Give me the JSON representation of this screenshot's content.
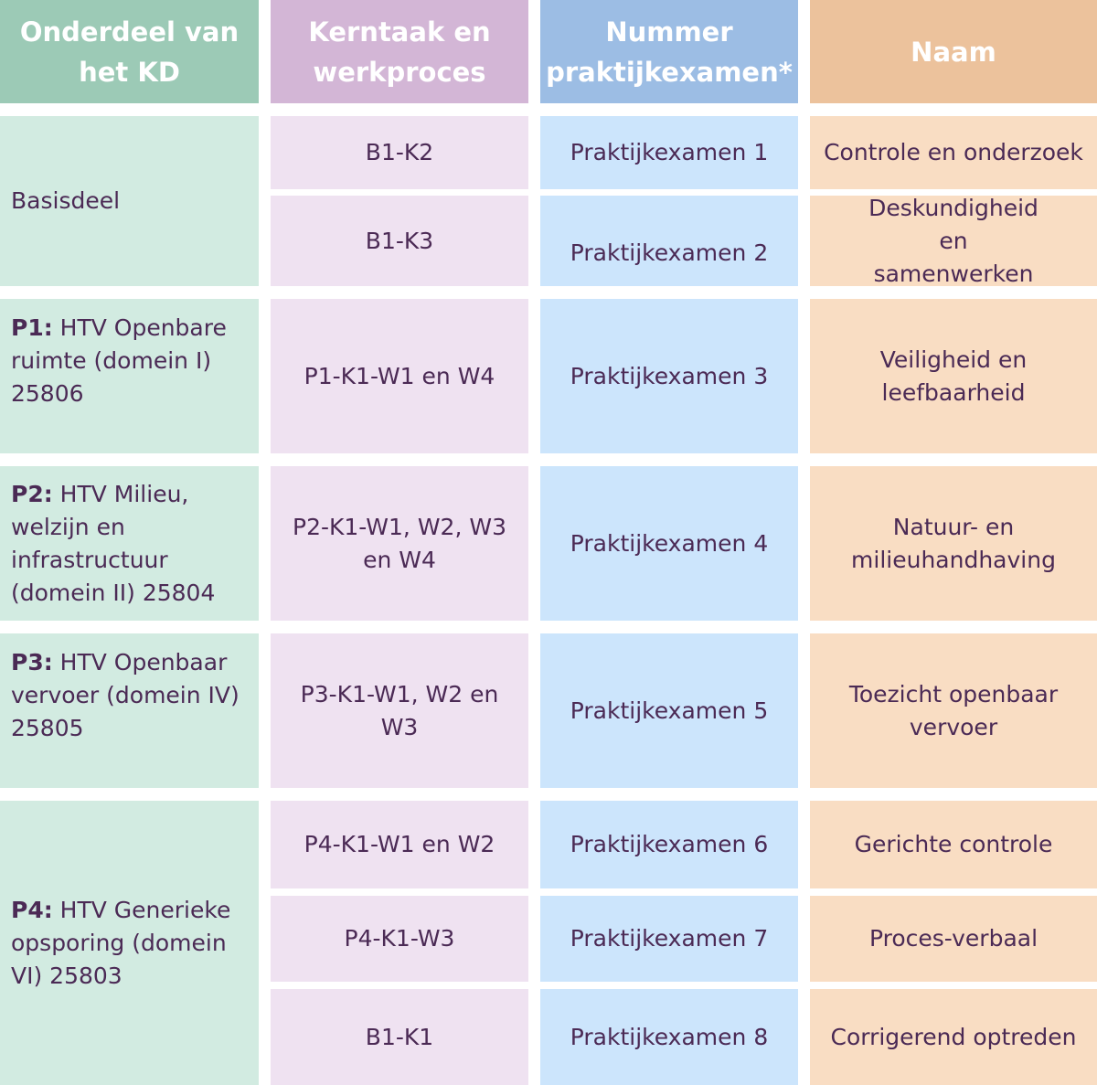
{
  "headers": [
    "Onderdeel van het KD",
    "Kerntaak en werkproces",
    "Nummer praktijkexamen*",
    "Naam"
  ],
  "groups": [
    {
      "code": "",
      "label": "Basisdeel"
    },
    {
      "code": "P1:",
      "label": " HTV Openbare ruimte (domein I) 25806"
    },
    {
      "code": "P2:",
      "label": " HTV Milieu, welzijn en infrastructuur (domein II) 25804"
    },
    {
      "code": "P3:",
      "label": " HTV Openbaar vervoer (domein IV) 25805"
    },
    {
      "code": "P4:",
      "label": " HTV Generieke opsporing (domein VI) 25803"
    }
  ],
  "rows": [
    {
      "kerntaak": "B1-K2",
      "nummer": "Praktijkexamen 1",
      "naam": "Controle en onderzoek"
    },
    {
      "kerntaak": "B1-K3",
      "nummer": "Praktijkexamen 2",
      "naam": "Deskundigheid en samenwerken"
    },
    {
      "kerntaak": "P1-K1-W1 en W4",
      "nummer": "Praktijkexamen 3",
      "naam": "Veiligheid en leefbaarheid"
    },
    {
      "kerntaak": "P2-K1-W1, W2, W3 en W4",
      "nummer": "Praktijkexamen 4",
      "naam": "Natuur- en milieuhandhaving"
    },
    {
      "kerntaak": "P3-K1-W1, W2 en W3",
      "nummer": "Praktijkexamen 5",
      "naam": "Toezicht openbaar vervoer"
    },
    {
      "kerntaak": "P4-K1-W1 en W2",
      "nummer": "Praktijkexamen 6",
      "naam": "Gerichte controle"
    },
    {
      "kerntaak": "P4-K1-W3",
      "nummer": "Praktijkexamen 7",
      "naam": "Proces-verbaal"
    },
    {
      "kerntaak": "B1-K1",
      "nummer": "Praktijkexamen 8",
      "naam": "Corrigerend optreden"
    }
  ],
  "colors": {
    "header": [
      "#9ccab6",
      "#d3b6d6",
      "#9cbde4",
      "#ecc29c"
    ],
    "body": [
      "#d2ebe1",
      "#efe2f1",
      "#cce5fc",
      "#f9ddc3"
    ],
    "text": "#4b2a55"
  }
}
